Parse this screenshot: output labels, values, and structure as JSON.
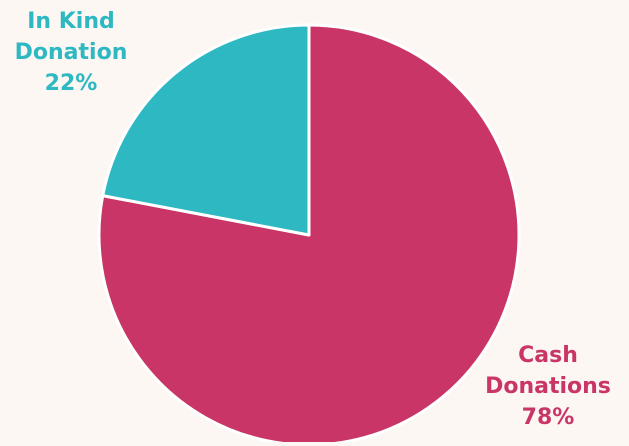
{
  "chart_data": {
    "type": "pie",
    "title": "",
    "slices": [
      {
        "label_lines": [
          "Cash",
          "Donations"
        ],
        "value": 78,
        "value_label": "78%",
        "color": "#c93566"
      },
      {
        "label_lines": [
          "In Kind",
          "Donation"
        ],
        "value": 22,
        "value_label": "22%",
        "color": "#2db8c2"
      }
    ],
    "start_angle": "12 o'clock",
    "direction": "clockwise",
    "slice_border_color": "#ffffff",
    "label_colors_match_slices": true,
    "background_color": "#fdf7f4"
  }
}
